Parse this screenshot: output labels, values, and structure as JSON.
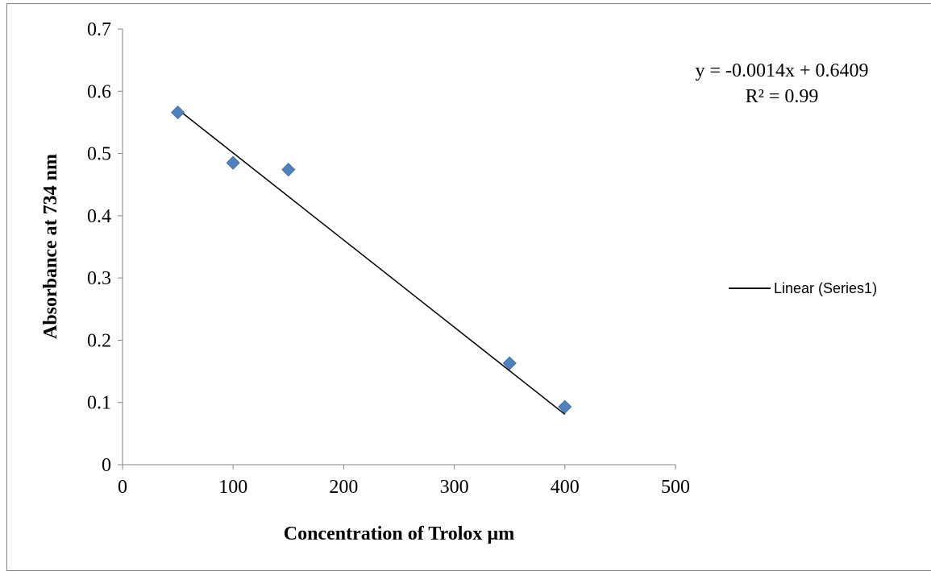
{
  "chart_data": {
    "type": "scatter",
    "title": "",
    "xlabel": "Concentration of Trolox µm",
    "ylabel": "Absorbance at 734 nm",
    "xlim": [
      0,
      500
    ],
    "ylim": [
      0,
      0.7
    ],
    "x_ticks": [
      0,
      100,
      200,
      300,
      400,
      500
    ],
    "y_ticks": [
      0,
      0.1,
      0.2,
      0.3,
      0.4,
      0.5,
      0.6,
      0.7
    ],
    "grid": false,
    "series": [
      {
        "x": [
          50,
          100,
          150,
          350,
          400
        ],
        "y": [
          0.566,
          0.485,
          0.474,
          0.163,
          0.093
        ],
        "color": "#4f81bd",
        "marker": "diamond"
      }
    ],
    "trendline": {
      "type": "linear",
      "slope": -0.0014,
      "intercept": 0.6409,
      "x_range": [
        50,
        400
      ],
      "color": "#000000",
      "equation": "y = -0.0014x + 0.6409",
      "r_squared": "R² = 0.99"
    },
    "legend": {
      "placement": "right",
      "entries": [
        "Linear (Series1)"
      ]
    }
  }
}
